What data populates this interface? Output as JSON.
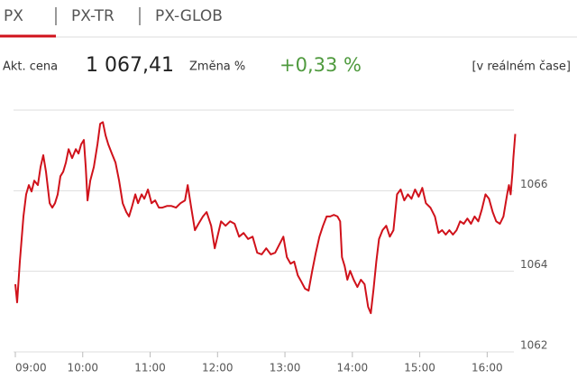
{
  "tabs": [
    "PX",
    "PX-TR",
    "PX-GLOB"
  ],
  "quote": {
    "price_label": "Akt. cena",
    "price": "1 067,41",
    "change_label": "Změna %",
    "change": "+0,33 %",
    "realtime": "[v reálném čase]"
  },
  "chart_data": {
    "type": "line",
    "color": "#d0121b",
    "grid": true,
    "xlim": [
      9,
      16.45
    ],
    "ylim": [
      1062,
      1068
    ],
    "xticks": [
      {
        "value": 9,
        "label": "09:00"
      },
      {
        "value": 10,
        "label": "10:00"
      },
      {
        "value": 11,
        "label": "11:00"
      },
      {
        "value": 12,
        "label": "12:00"
      },
      {
        "value": 13,
        "label": "13:00"
      },
      {
        "value": 14,
        "label": "14:00"
      },
      {
        "value": 15,
        "label": "15:00"
      },
      {
        "value": 16,
        "label": "16:00"
      }
    ],
    "yticks": [
      1062,
      1064,
      1066
    ],
    "x": [
      9.0,
      9.027,
      9.067,
      9.12,
      9.161,
      9.201,
      9.241,
      9.281,
      9.335,
      9.375,
      9.415,
      9.455,
      9.509,
      9.549,
      9.589,
      9.629,
      9.669,
      9.71,
      9.75,
      9.79,
      9.843,
      9.897,
      9.937,
      9.977,
      10.017,
      10.044,
      10.071,
      10.111,
      10.165,
      10.218,
      10.258,
      10.299,
      10.339,
      10.379,
      10.432,
      10.486,
      10.54,
      10.593,
      10.647,
      10.687,
      10.727,
      10.78,
      10.821,
      10.874,
      10.914,
      10.968,
      11.021,
      11.075,
      11.129,
      11.182,
      11.249,
      11.316,
      11.383,
      11.45,
      11.517,
      11.557,
      11.61,
      11.664,
      11.718,
      11.784,
      11.838,
      11.905,
      11.959,
      11.999,
      12.052,
      12.119,
      12.186,
      12.253,
      12.32,
      12.387,
      12.454,
      12.521,
      12.588,
      12.655,
      12.722,
      12.789,
      12.855,
      12.922,
      12.976,
      13.029,
      13.083,
      13.137,
      13.19,
      13.244,
      13.297,
      13.351,
      13.404,
      13.458,
      13.511,
      13.565,
      13.618,
      13.672,
      13.726,
      13.779,
      13.819,
      13.846,
      13.886,
      13.926,
      13.967,
      14.02,
      14.074,
      14.127,
      14.181,
      14.234,
      14.274,
      14.315,
      14.355,
      14.395,
      14.448,
      14.502,
      14.556,
      14.609,
      14.663,
      14.716,
      14.77,
      14.823,
      14.877,
      14.93,
      14.984,
      15.038,
      15.091,
      15.158,
      15.225,
      15.278,
      15.332,
      15.386,
      15.439,
      15.493,
      15.546,
      15.6,
      15.653,
      15.707,
      15.76,
      15.814,
      15.868,
      15.921,
      15.975,
      16.028,
      16.082,
      16.135,
      16.189,
      16.242,
      16.296,
      16.323,
      16.349,
      16.376,
      16.389,
      16.416
    ],
    "values": [
      1063.68,
      1063.23,
      1064.24,
      1065.36,
      1065.91,
      1066.14,
      1065.98,
      1066.25,
      1066.14,
      1066.59,
      1066.88,
      1066.47,
      1065.69,
      1065.58,
      1065.69,
      1065.91,
      1066.36,
      1066.47,
      1066.7,
      1067.03,
      1066.81,
      1067.03,
      1066.92,
      1067.15,
      1067.26,
      1066.59,
      1065.76,
      1066.25,
      1066.59,
      1067.15,
      1067.66,
      1067.7,
      1067.37,
      1067.15,
      1066.92,
      1066.7,
      1066.25,
      1065.69,
      1065.47,
      1065.36,
      1065.58,
      1065.91,
      1065.69,
      1065.91,
      1065.8,
      1066.03,
      1065.69,
      1065.76,
      1065.58,
      1065.58,
      1065.62,
      1065.62,
      1065.58,
      1065.69,
      1065.76,
      1066.14,
      1065.58,
      1065.02,
      1065.18,
      1065.36,
      1065.47,
      1065.13,
      1064.57,
      1064.86,
      1065.24,
      1065.13,
      1065.24,
      1065.18,
      1064.86,
      1064.95,
      1064.8,
      1064.86,
      1064.46,
      1064.42,
      1064.57,
      1064.42,
      1064.46,
      1064.68,
      1064.86,
      1064.35,
      1064.19,
      1064.24,
      1063.9,
      1063.74,
      1063.57,
      1063.52,
      1064.01,
      1064.46,
      1064.86,
      1065.13,
      1065.36,
      1065.36,
      1065.4,
      1065.36,
      1065.24,
      1064.35,
      1064.13,
      1063.79,
      1064.01,
      1063.79,
      1063.61,
      1063.79,
      1063.68,
      1063.12,
      1062.96,
      1063.57,
      1064.24,
      1064.8,
      1065.02,
      1065.13,
      1064.86,
      1065.02,
      1065.91,
      1066.03,
      1065.76,
      1065.91,
      1065.8,
      1066.03,
      1065.85,
      1066.07,
      1065.69,
      1065.58,
      1065.36,
      1064.95,
      1065.02,
      1064.91,
      1065.02,
      1064.91,
      1065.02,
      1065.24,
      1065.18,
      1065.31,
      1065.18,
      1065.36,
      1065.24,
      1065.53,
      1065.91,
      1065.8,
      1065.47,
      1065.24,
      1065.18,
      1065.36,
      1065.91,
      1066.14,
      1065.91,
      1066.47,
      1066.81,
      1067.41
    ]
  }
}
